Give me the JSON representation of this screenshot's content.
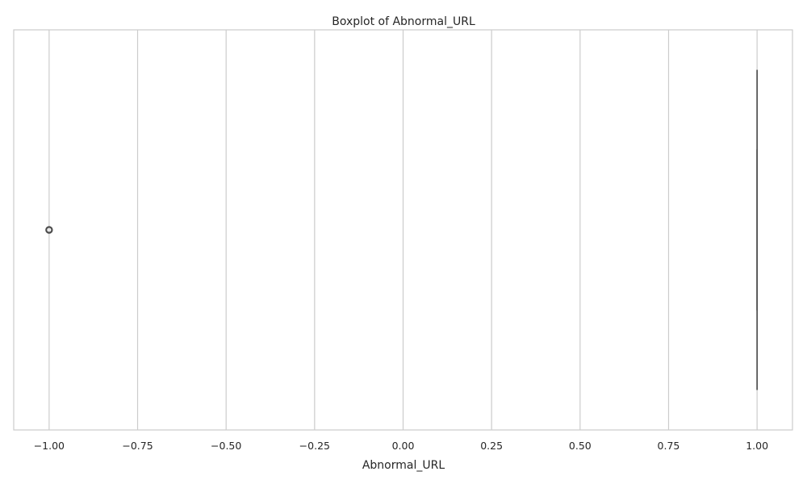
{
  "chart_data": {
    "type": "box",
    "orientation": "horizontal",
    "title": "Boxplot of Abnormal_URL",
    "xlabel": "Abnormal_URL",
    "ylabel": "",
    "xlim": [
      -1.1,
      1.1
    ],
    "xticks": [
      -1.0,
      -0.75,
      -0.5,
      -0.25,
      0.0,
      0.25,
      0.5,
      0.75,
      1.0
    ],
    "xtick_labels": [
      "−1.00",
      "−0.75",
      "−0.50",
      "−0.25",
      "0.00",
      "0.25",
      "0.50",
      "0.75",
      "1.00"
    ],
    "grid": "vertical",
    "series": [
      {
        "min": 1.0,
        "q1": 1.0,
        "median": 1.0,
        "q3": 1.0,
        "max": 1.0,
        "outliers": [
          -1.0
        ]
      }
    ],
    "colors": {
      "grid": "#cccccc",
      "frame": "#cccccc",
      "box": "#4d4d4d"
    }
  }
}
